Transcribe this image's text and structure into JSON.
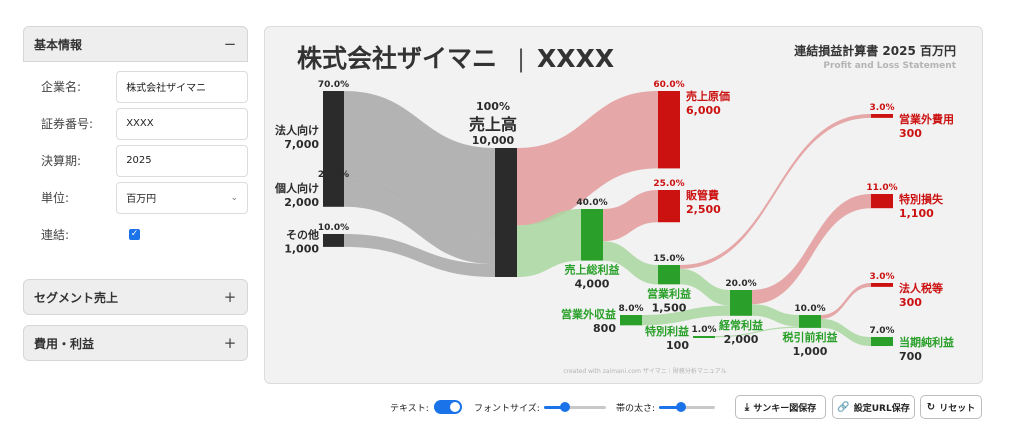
{
  "sidebar": {
    "basic": {
      "title": "基本情報",
      "toggle": "−"
    },
    "fields": [
      {
        "label": "企業名:",
        "value": "株式会社ザイマニ"
      },
      {
        "label": "証券番号:",
        "value": "XXXX"
      },
      {
        "label": "決算期:",
        "value": "2025"
      },
      {
        "label": "単位:",
        "value": "百万円"
      }
    ],
    "consolidated_label": "連結:",
    "consolidated_checked": true,
    "segment": {
      "title": "セグメント売上",
      "toggle": "+"
    },
    "costs": {
      "title": "費用・利益",
      "toggle": "+"
    }
  },
  "chart": {
    "company": "株式会社ザイマニ",
    "sep": "|",
    "code": "XXXX",
    "subtitle": "連結損益計算書 2025 百万円",
    "subtitle_en": "Profit and Loss Statement",
    "credit": "created with zaimani.com ザイマニ｜財務分析マニュアル"
  },
  "chart_data": {
    "type": "sankey",
    "unit": "百万円",
    "nodes": [
      {
        "id": "corp",
        "name": "法人向け",
        "value": "7,000",
        "pct": "70.0%"
      },
      {
        "id": "indiv",
        "name": "個人向け",
        "value": "2,000",
        "pct": "20.0%"
      },
      {
        "id": "other",
        "name": "その他",
        "value": "1,000",
        "pct": "10.0%"
      },
      {
        "id": "rev",
        "name": "売上高",
        "value": "10,000",
        "pct": "100%"
      },
      {
        "id": "cogs",
        "name": "売上原価",
        "value": "6,000",
        "pct": "60.0%"
      },
      {
        "id": "gross",
        "name": "売上総利益",
        "value": "4,000",
        "pct": "40.0%"
      },
      {
        "id": "sga",
        "name": "販管費",
        "value": "2,500",
        "pct": "25.0%"
      },
      {
        "id": "op",
        "name": "営業利益",
        "value": "1,500",
        "pct": "15.0%"
      },
      {
        "id": "nonopinc",
        "name": "営業外収益",
        "value": "800",
        "pct": "8.0%"
      },
      {
        "id": "nonopexp",
        "name": "営業外費用",
        "value": "300",
        "pct": "3.0%"
      },
      {
        "id": "ordinary",
        "name": "経常利益",
        "value": "2,000",
        "pct": "20.0%"
      },
      {
        "id": "extinc",
        "name": "特別利益",
        "value": "100",
        "pct": "1.0%"
      },
      {
        "id": "extloss",
        "name": "特別損失",
        "value": "1,100",
        "pct": "11.0%"
      },
      {
        "id": "pretax",
        "name": "税引前利益",
        "value": "1,000",
        "pct": "10.0%"
      },
      {
        "id": "tax",
        "name": "法人税等",
        "value": "300",
        "pct": "3.0%"
      },
      {
        "id": "net",
        "name": "当期純利益",
        "value": "700",
        "pct": "7.0%"
      }
    ],
    "links": [
      {
        "source": "corp",
        "target": "rev",
        "value": 7000
      },
      {
        "source": "indiv",
        "target": "rev",
        "value": 2000
      },
      {
        "source": "other",
        "target": "rev",
        "value": 1000
      },
      {
        "source": "rev",
        "target": "cogs",
        "value": 6000
      },
      {
        "source": "rev",
        "target": "gross",
        "value": 4000
      },
      {
        "source": "gross",
        "target": "sga",
        "value": 2500
      },
      {
        "source": "gross",
        "target": "op",
        "value": 1500
      },
      {
        "source": "op",
        "target": "nonopexp",
        "value": 300
      },
      {
        "source": "op",
        "target": "ordinary",
        "value": 1200
      },
      {
        "source": "nonopinc",
        "target": "ordinary",
        "value": 800
      },
      {
        "source": "ordinary",
        "target": "extloss",
        "value": 1100
      },
      {
        "source": "ordinary",
        "target": "pretax",
        "value": 900
      },
      {
        "source": "extinc",
        "target": "pretax",
        "value": 100
      },
      {
        "source": "pretax",
        "target": "tax",
        "value": 300
      },
      {
        "source": "pretax",
        "target": "net",
        "value": 700
      }
    ],
    "colors": {
      "revenue": "#2b2b2b",
      "cost": "#cc1111",
      "profit": "#2aa02a",
      "gray_flow": "#a8a8a8",
      "cost_flow": "#e39a9a",
      "profit_flow": "#a9d7a0"
    }
  },
  "toolbar": {
    "text_label": "テキスト:",
    "text_on": true,
    "font_label": "フォントサイズ:",
    "font_level": 0.35,
    "band_label": "帯の太さ:",
    "band_level": 0.4,
    "save_sankey": "サンキー図保存",
    "save_url": "設定URL保存",
    "reset": "リセット"
  }
}
